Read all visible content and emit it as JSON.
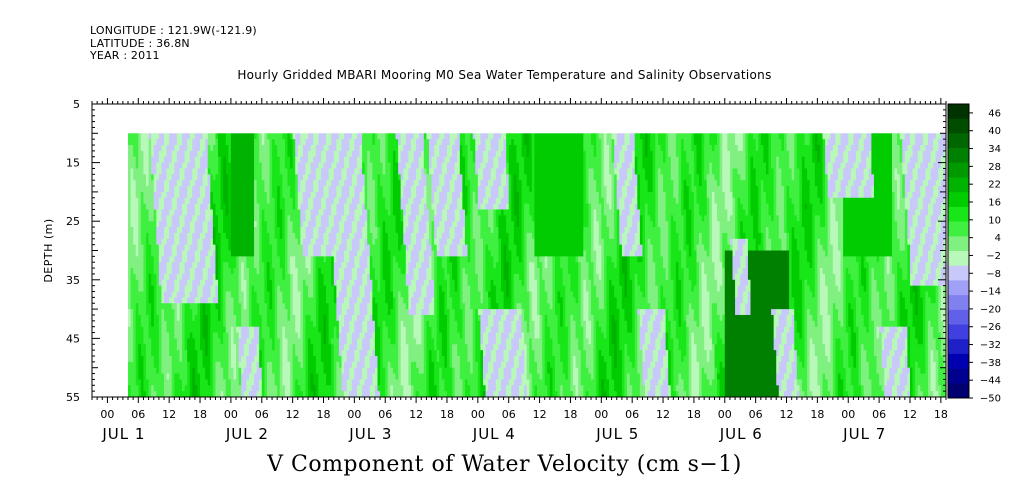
{
  "header": {
    "longitude": "LONGITUDE : 121.9W(-121.9)",
    "latitude": "LATITUDE : 36.8N",
    "year": "YEAR : 2011"
  },
  "chart_data": {
    "type": "heatmap",
    "title": "Hourly Gridded MBARI Mooring M0 Sea Water Temperature and Salinity Observations",
    "variable_label": "V Component of Water Velocity (cm s−1)",
    "ylabel": "DEPTH (m)",
    "y_ticks": [
      "5",
      "15",
      "25",
      "35",
      "45",
      "55"
    ],
    "ylim": [
      5,
      55
    ],
    "y_inverted": true,
    "x_hour_ticks": [
      "00",
      "06",
      "12",
      "18",
      "00",
      "06",
      "12",
      "18",
      "00",
      "06",
      "12",
      "18",
      "00",
      "06",
      "12",
      "18",
      "00",
      "06",
      "12",
      "18",
      "00",
      "06",
      "12",
      "18",
      "00",
      "06",
      "12",
      "18"
    ],
    "x_day_labels": [
      "JUL  1",
      "JUL  2",
      "JUL  3",
      "JUL  4",
      "JUL  5",
      "JUL  6",
      "JUL  7"
    ],
    "x_start_hour": -3,
    "x_end_hour": 163,
    "data_start_hour": 4,
    "data_end_hour": 163,
    "data_depth_range": [
      10,
      55
    ],
    "colorbar": {
      "labels": [
        "46",
        "40",
        "34",
        "28",
        "22",
        "16",
        "10",
        "4",
        "−2",
        "−8",
        "−14",
        "−20",
        "−26",
        "−32",
        "−38",
        "−44",
        "−50"
      ],
      "min": -50,
      "max": 49,
      "colors": [
        "#003300",
        "#004d00",
        "#006600",
        "#008000",
        "#009900",
        "#00b300",
        "#00cc00",
        "#19e619",
        "#40f040",
        "#80f080",
        "#b8f8b8",
        "#c8c8fa",
        "#a0a0f8",
        "#8080f0",
        "#6060e8",
        "#4040e0",
        "#2020c8",
        "#0000b0",
        "#000090",
        "#000070"
      ]
    },
    "negative_patches": [
      {
        "hours": [
          8,
          19
        ],
        "depths": [
          10,
          38
        ]
      },
      {
        "hours": [
          0,
          3
        ],
        "depths": [
          47,
          55
        ]
      },
      {
        "hours": [
          25,
          29
        ],
        "depths": [
          43,
          55
        ]
      },
      {
        "hours": [
          36,
          42
        ],
        "depths": [
          10,
          30
        ]
      },
      {
        "hours": [
          42,
          49
        ],
        "depths": [
          10,
          55
        ]
      },
      {
        "hours": [
          56,
          61
        ],
        "depths": [
          10,
          40
        ]
      },
      {
        "hours": [
          62,
          68
        ],
        "depths": [
          10,
          30
        ]
      },
      {
        "hours": [
          72,
          80
        ],
        "depths": [
          40,
          55
        ]
      },
      {
        "hours": [
          71,
          77
        ],
        "depths": [
          10,
          22
        ]
      },
      {
        "hours": [
          98,
          102
        ],
        "depths": [
          10,
          30
        ]
      },
      {
        "hours": [
          103,
          108
        ],
        "depths": [
          40,
          55
        ]
      },
      {
        "hours": [
          121,
          124
        ],
        "depths": [
          28,
          40
        ]
      },
      {
        "hours": [
          129,
          133
        ],
        "depths": [
          40,
          55
        ]
      },
      {
        "hours": [
          139,
          148
        ],
        "depths": [
          10,
          20
        ]
      },
      {
        "hours": [
          154,
          163
        ],
        "depths": [
          10,
          35
        ]
      },
      {
        "hours": [
          150,
          155
        ],
        "depths": [
          43,
          55
        ]
      }
    ],
    "strong_positive_patches": [
      {
        "hours": [
          120,
          132
        ],
        "depths": [
          30,
          55
        ],
        "value": 30
      },
      {
        "hours": [
          24,
          28
        ],
        "depths": [
          10,
          30
        ],
        "value": 20
      },
      {
        "hours": [
          83,
          92
        ],
        "depths": [
          10,
          30
        ],
        "value": 18
      },
      {
        "hours": [
          143,
          152
        ],
        "depths": [
          10,
          30
        ],
        "value": 18
      }
    ]
  }
}
